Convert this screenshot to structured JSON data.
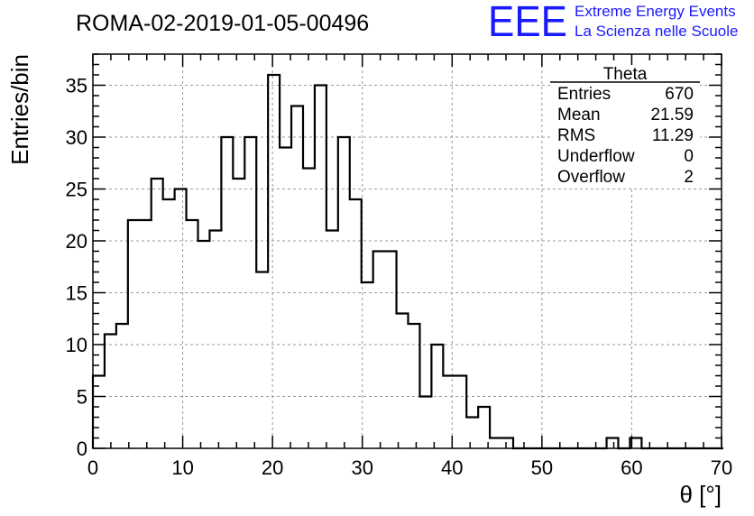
{
  "header": {
    "run_title": "ROMA-02-2019-01-05-00496",
    "logo_mark": "EEE",
    "logo_line1": "Extreme Energy Events",
    "logo_line2": "La Scienza nelle Scuole",
    "logo_color": "#1a1aff"
  },
  "stats_box": {
    "title": "Theta",
    "rows": [
      {
        "label": "Entries",
        "value": "670"
      },
      {
        "label": "Mean",
        "value": "21.59"
      },
      {
        "label": "RMS",
        "value": "11.29"
      },
      {
        "label": "Underflow",
        "value": "0"
      },
      {
        "label": "Overflow",
        "value": "2"
      }
    ]
  },
  "chart_data": {
    "type": "bar",
    "style": "step-histogram",
    "xlabel": "θ [°]",
    "ylabel": "Entries/bin",
    "xlim": [
      0,
      70
    ],
    "ylim": [
      0,
      38
    ],
    "x_ticks": [
      0,
      10,
      20,
      30,
      40,
      50,
      60,
      70
    ],
    "y_ticks": [
      0,
      5,
      10,
      15,
      20,
      25,
      30,
      35
    ],
    "grid": true,
    "bin_width": 1.3,
    "bin_edges_start": 0,
    "values": [
      7,
      11,
      12,
      22,
      22,
      26,
      24,
      25,
      22,
      20,
      21,
      30,
      26,
      30,
      17,
      36,
      29,
      33,
      27,
      35,
      21,
      30,
      24,
      16,
      19,
      19,
      13,
      12,
      5,
      10,
      7,
      7,
      3,
      4,
      1,
      1,
      0,
      0,
      0,
      0,
      0,
      0,
      0,
      0,
      1,
      0,
      1,
      0,
      0,
      0,
      0,
      0,
      0,
      0
    ]
  }
}
